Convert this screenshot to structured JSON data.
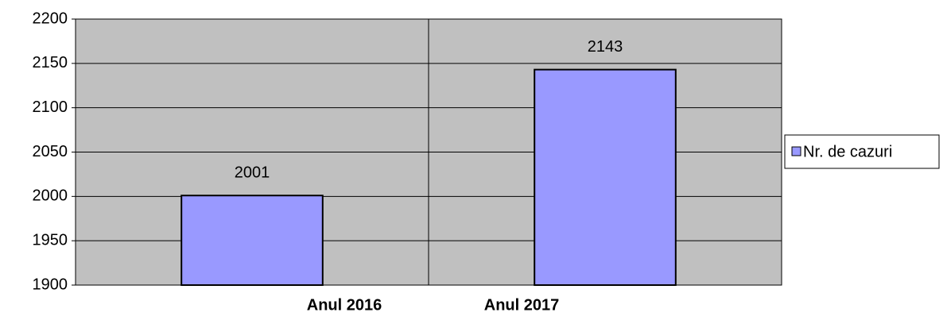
{
  "chart_data": {
    "type": "bar",
    "categories": [
      "Anul 2016",
      "Anul 2017"
    ],
    "series": [
      {
        "name": "Nr. de cazuri",
        "color": "#9999ff",
        "values": [
          2001,
          2143
        ]
      }
    ],
    "ylim": [
      1900,
      2200
    ],
    "yticks": [
      1900,
      1950,
      2000,
      2050,
      2100,
      2150,
      2200
    ],
    "grid": true,
    "legend": "right",
    "plot_background": "#c0c0c0"
  }
}
